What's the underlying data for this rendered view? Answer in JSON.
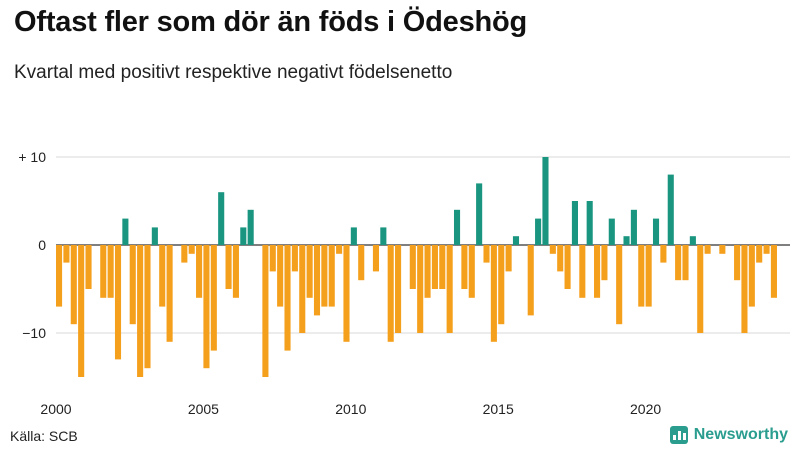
{
  "header": {
    "title": "Oftast fler som dör än föds i Ödeshög",
    "subtitle": "Kvartal med positivt respektive negativt födelsenetto"
  },
  "footer": {
    "source": "Källa: SCB",
    "brand": "Newsworthy"
  },
  "colors": {
    "positive": "#1a9680",
    "negative": "#f5a01d",
    "brand": "#2a9d8f"
  },
  "chart_data": {
    "type": "bar",
    "title": "Oftast fler som dör än föds i Ödeshög",
    "subtitle": "Kvartal med positivt respektive negativt födelsenetto",
    "xlabel": "",
    "ylabel": "",
    "ylim": [
      -17,
      12
    ],
    "grid": true,
    "x_start_year": 2000,
    "x_ticks": [
      2000,
      2005,
      2010,
      2015,
      2020
    ],
    "x_tick_labels": [
      "2000",
      "2005",
      "2010",
      "2015",
      "2020"
    ],
    "y_ticks": [
      10,
      0,
      -10
    ],
    "y_tick_labels": [
      "+ 10",
      "0",
      "−10"
    ],
    "values": [
      -7,
      -2,
      -9,
      -15,
      -5,
      0,
      -6,
      -6,
      -13,
      3,
      -9,
      -15,
      -14,
      2,
      -7,
      -11,
      0,
      -2,
      -1,
      -6,
      -14,
      -12,
      6,
      -5,
      -6,
      2,
      4,
      0,
      -15,
      -3,
      -7,
      -12,
      -3,
      -10,
      -6,
      -8,
      -7,
      -7,
      -1,
      -11,
      2,
      -4,
      0,
      -3,
      2,
      -11,
      -10,
      0,
      -5,
      -10,
      -6,
      -5,
      -5,
      -10,
      4,
      -5,
      -6,
      7,
      -2,
      -11,
      -9,
      -3,
      1,
      0,
      -8,
      3,
      10,
      -1,
      -3,
      -5,
      5,
      -6,
      5,
      -6,
      -4,
      3,
      -9,
      1,
      4,
      -7,
      -7,
      3,
      -2,
      8,
      -4,
      -4,
      1,
      -10,
      -1,
      0,
      -1,
      0,
      -4,
      -10,
      -7,
      -2,
      -1,
      -6
    ]
  }
}
